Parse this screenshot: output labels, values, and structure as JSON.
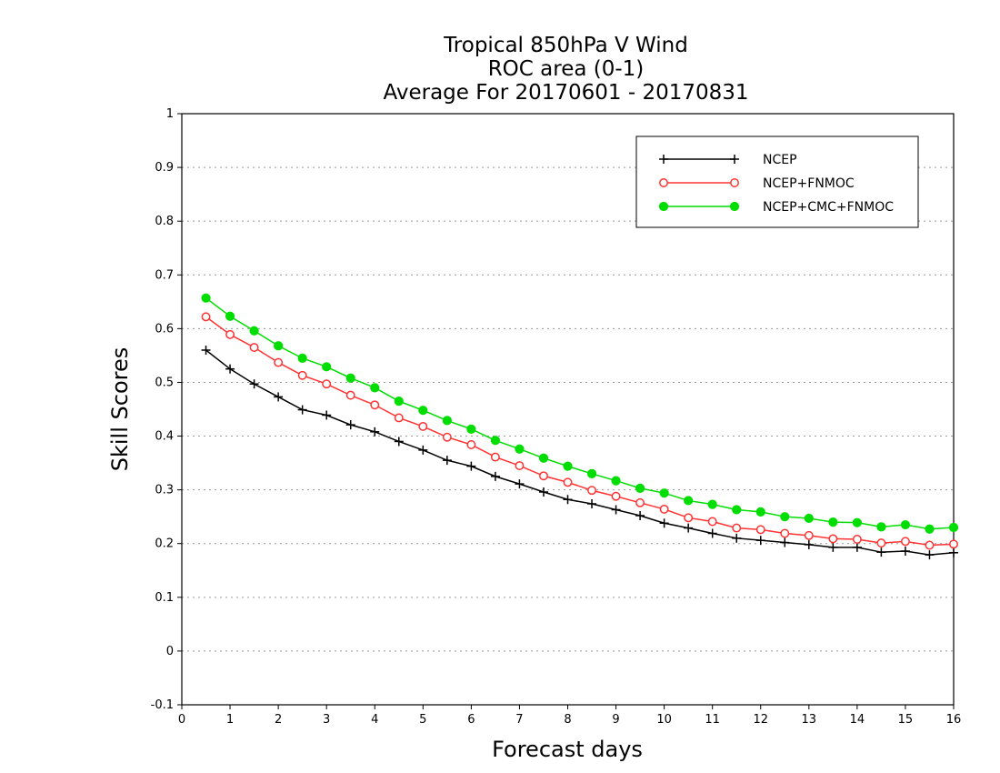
{
  "chart_data": {
    "type": "line",
    "title": [
      "Tropical 850hPa V Wind",
      "ROC area (0-1)",
      "Average For 20170601 - 20170831"
    ],
    "xlabel": "Forecast days",
    "ylabel": "Skill Scores",
    "xlim": [
      0,
      16
    ],
    "ylim": [
      -0.1,
      1
    ],
    "xticks": [
      0,
      1,
      2,
      3,
      4,
      5,
      6,
      7,
      8,
      9,
      10,
      11,
      12,
      13,
      14,
      15,
      16
    ],
    "yticks": [
      -0.1,
      0,
      0.1,
      0.2,
      0.3,
      0.4,
      0.5,
      0.6,
      0.7,
      0.8,
      0.9,
      1
    ],
    "ytick_labels": [
      "-0.1",
      "0",
      "0.1",
      "0.2",
      "0.3",
      "0.4",
      "0.5",
      "0.6",
      "0.7",
      "0.8",
      "0.9",
      "1"
    ],
    "grid": "horizontal dotted",
    "legend_position": "top-right",
    "x": [
      0.5,
      1,
      1.5,
      2,
      2.5,
      3,
      3.5,
      4,
      4.5,
      5,
      5.5,
      6,
      6.5,
      7,
      7.5,
      8,
      8.5,
      9,
      9.5,
      10,
      10.5,
      11,
      11.5,
      12,
      12.5,
      13,
      13.5,
      14,
      14.5,
      15,
      15.5,
      16
    ],
    "series": [
      {
        "name": "NCEP",
        "color": "#000000",
        "marker": "plus",
        "values": [
          0.56,
          0.525,
          0.497,
          0.473,
          0.449,
          0.439,
          0.421,
          0.408,
          0.39,
          0.374,
          0.355,
          0.344,
          0.325,
          0.311,
          0.296,
          0.282,
          0.274,
          0.263,
          0.252,
          0.238,
          0.229,
          0.219,
          0.21,
          0.206,
          0.202,
          0.198,
          0.193,
          0.193,
          0.184,
          0.186,
          0.179,
          0.183
        ]
      },
      {
        "name": "NCEP+FNMOC",
        "color": "#ff3333",
        "marker": "open-circle",
        "values": [
          0.622,
          0.589,
          0.565,
          0.537,
          0.513,
          0.497,
          0.476,
          0.458,
          0.434,
          0.418,
          0.398,
          0.384,
          0.361,
          0.345,
          0.326,
          0.314,
          0.299,
          0.288,
          0.276,
          0.264,
          0.248,
          0.241,
          0.229,
          0.226,
          0.219,
          0.215,
          0.209,
          0.208,
          0.201,
          0.204,
          0.197,
          0.199
        ]
      },
      {
        "name": "NCEP+CMC+FNMOC",
        "color": "#00dd00",
        "marker": "filled-circle",
        "values": [
          0.657,
          0.623,
          0.596,
          0.568,
          0.545,
          0.529,
          0.508,
          0.49,
          0.465,
          0.448,
          0.429,
          0.413,
          0.392,
          0.376,
          0.359,
          0.344,
          0.33,
          0.317,
          0.303,
          0.294,
          0.28,
          0.273,
          0.263,
          0.259,
          0.25,
          0.247,
          0.24,
          0.239,
          0.231,
          0.235,
          0.227,
          0.23
        ]
      }
    ]
  }
}
